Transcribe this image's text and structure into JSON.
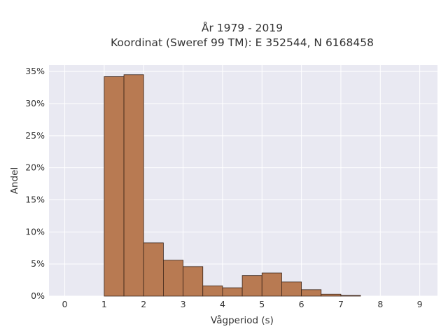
{
  "chart_data": {
    "type": "bar",
    "title_lines": [
      "År 1979 - 2019",
      "Koordinat (Sweref 99 TM): E 352544, N 6168458"
    ],
    "xlabel": "Vågperiod (s)",
    "ylabel": "Andel",
    "xlim": [
      -0.4,
      9.45
    ],
    "ylim": [
      0,
      36
    ],
    "x_ticks": [
      0,
      1,
      2,
      3,
      4,
      5,
      6,
      7,
      8,
      9
    ],
    "y_ticks": [
      0,
      5,
      10,
      15,
      20,
      25,
      30,
      35
    ],
    "y_tick_suffix": "%",
    "bin_width": 0.5,
    "bins": [
      {
        "x0": 1.0,
        "value": 34.2
      },
      {
        "x0": 1.5,
        "value": 34.5
      },
      {
        "x0": 2.0,
        "value": 8.3
      },
      {
        "x0": 2.5,
        "value": 5.6
      },
      {
        "x0": 3.0,
        "value": 4.6
      },
      {
        "x0": 3.5,
        "value": 1.6
      },
      {
        "x0": 4.0,
        "value": 1.3
      },
      {
        "x0": 4.5,
        "value": 3.2
      },
      {
        "x0": 5.0,
        "value": 3.6
      },
      {
        "x0": 5.5,
        "value": 2.2
      },
      {
        "x0": 6.0,
        "value": 1.0
      },
      {
        "x0": 6.5,
        "value": 0.3
      },
      {
        "x0": 7.0,
        "value": 0.1
      }
    ],
    "grid": true,
    "bar_color": "#b87a52",
    "bar_edge_color": "#3a2418",
    "plot_background": "#e9e9f2",
    "grid_color": "#ffffff"
  }
}
